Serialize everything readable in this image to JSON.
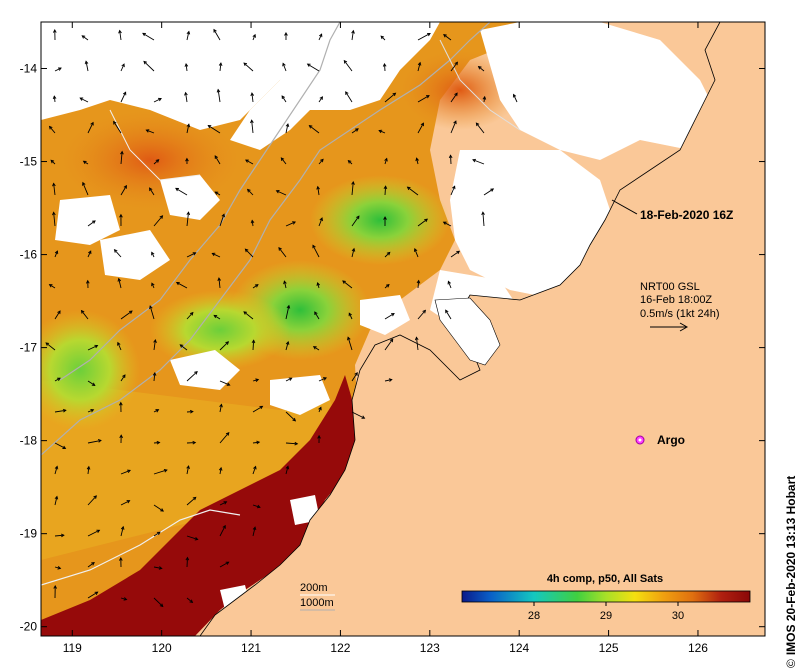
{
  "map": {
    "date_label": "18-Feb-2020 16Z",
    "current_legend": {
      "line1": "NRT00 GSL",
      "line2": "16-Feb 18:00Z",
      "line3": "0.5m/s (1kt 24h)"
    },
    "argo_label": "Argo",
    "depth_contours": [
      "200m",
      "1000m"
    ],
    "colorbar": {
      "title": "4h comp, p50, All Sats",
      "ticks": [
        28,
        29,
        30
      ],
      "range": [
        27,
        31
      ],
      "colors": [
        "#0a1a8a",
        "#0a60c8",
        "#14c8c0",
        "#40d040",
        "#a8e028",
        "#f4e010",
        "#f0a010",
        "#e07010",
        "#b02010",
        "#8a0808"
      ]
    },
    "x_ticks": [
      "119",
      "120",
      "121",
      "122",
      "123",
      "124",
      "125",
      "126"
    ],
    "y_ticks": [
      "-14",
      "-15",
      "-16",
      "-17",
      "-18",
      "-19",
      "-20"
    ],
    "credit": "IMOS 20-Feb-2020 13:13 Hobart",
    "copyright_symbol": "©",
    "colors": {
      "land": "#fac898",
      "hot": "#960a0a",
      "warm": "#e6901a",
      "mid": "#e8b41c",
      "cool": "#8ad23a",
      "cloud": "#ffffff"
    }
  }
}
